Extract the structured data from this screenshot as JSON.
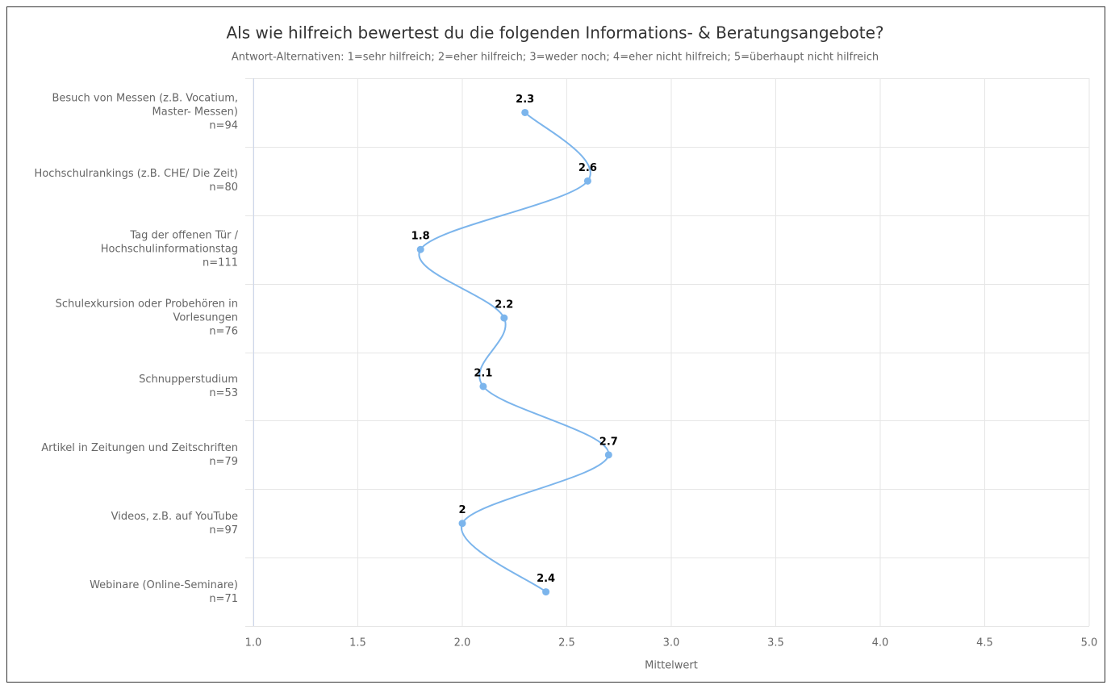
{
  "chart_data": {
    "type": "line",
    "orientation": "horizontal",
    "title": "Als wie hilfreich bewertest du die folgenden Informations- & Beratungsangebote?",
    "subtitle": "Antwort-Alternativen: 1=sehr hilfreich; 2=eher hilfreich; 3=weder noch; 4=eher nicht hilfreich; 5=überhaupt nicht hilfreich",
    "x_label": "Mittelwert",
    "categories": [
      "Besuch von Messen (z.B. Vocatium, Master- Messen)",
      "Hochschulrankings (z.B. CHE/ Die Zeit)",
      "Tag der offenen Tür / Hochschulinformationstag",
      "Schulexkursion oder Probehören in Vorlesungen",
      "Schnupperstudium",
      "Artikel in Zeitungen und Zeitschriften",
      "Videos, z.B. auf YouTube",
      "Webinare (Online-Seminare)"
    ],
    "n_labels": [
      "n=94",
      "n=80",
      "n=111",
      "n=76",
      "n=53",
      "n=79",
      "n=97",
      "n=71"
    ],
    "values": [
      2.3,
      2.6,
      1.8,
      2.2,
      2.1,
      2.7,
      2,
      2.4
    ],
    "color": "#7cb5ec",
    "xlim": [
      1,
      5
    ],
    "xticks": [
      {
        "value": 1,
        "label": "1.0"
      },
      {
        "value": 1.5,
        "label": "1.5"
      },
      {
        "value": 2,
        "label": "2.0"
      },
      {
        "value": 2.5,
        "label": "2.5"
      },
      {
        "value": 3,
        "label": "3.0"
      },
      {
        "value": 3.5,
        "label": "3.5"
      },
      {
        "value": 4,
        "label": "4.0"
      },
      {
        "value": 4.5,
        "label": "4.5"
      },
      {
        "value": 5,
        "label": "5.0"
      }
    ],
    "grid": true
  }
}
